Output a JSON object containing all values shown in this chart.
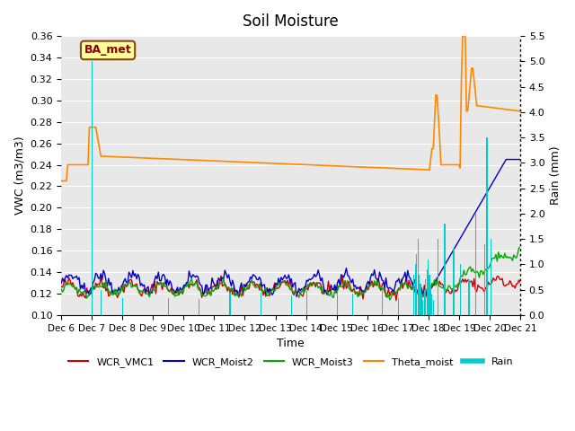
{
  "title": "Soil Moisture",
  "xlabel": "Time",
  "ylabel_left": "VWC (m3/m3)",
  "ylabel_right": "Rain (mm)",
  "ylim_left": [
    0.1,
    0.36
  ],
  "ylim_right": [
    0.0,
    5.5
  ],
  "yticks_left": [
    0.1,
    0.12,
    0.14,
    0.16,
    0.18,
    0.2,
    0.22,
    0.24,
    0.26,
    0.28,
    0.3,
    0.32,
    0.34,
    0.36
  ],
  "yticks_right": [
    0.0,
    0.5,
    1.0,
    1.5,
    2.0,
    2.5,
    3.0,
    3.5,
    4.0,
    4.5,
    5.0,
    5.5
  ],
  "station_label": "BA_met",
  "colors": {
    "WCR_VMC1": "#cc0000",
    "WCR_Moist2": "#0000cc",
    "WCR_Moist3": "#00aa00",
    "Theta_moist": "#ff8800",
    "Rain": "#00cccc"
  },
  "background_color": "#e8e8e8",
  "grid_color": "white",
  "n_points": 360
}
